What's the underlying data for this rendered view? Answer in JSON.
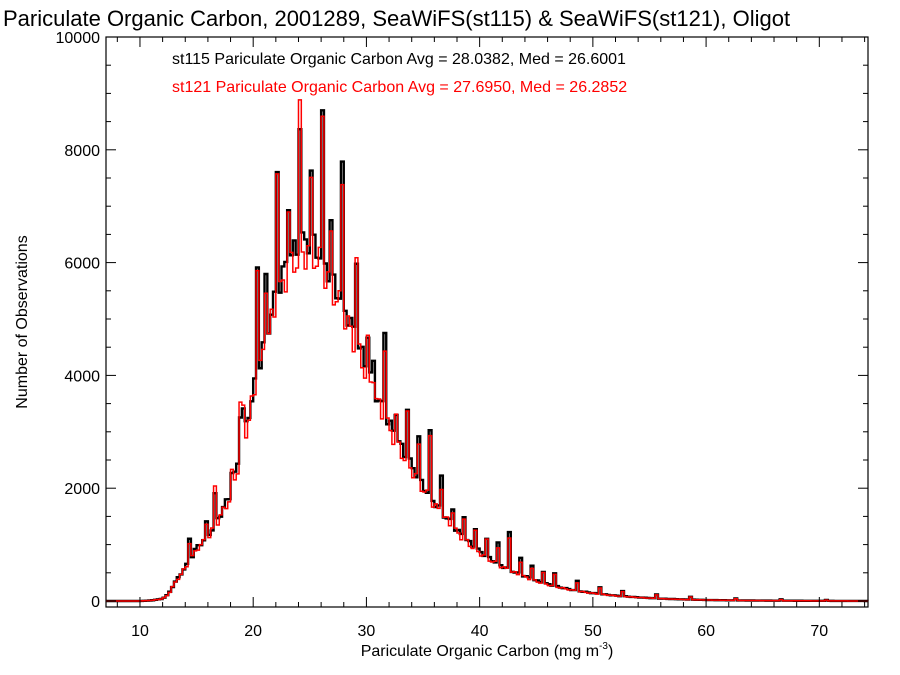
{
  "colors": {
    "st115": "#000000",
    "st121": "#ff0000",
    "axis": "#000000",
    "background": "#ffffff"
  },
  "chart_data": {
    "type": "histogram",
    "title": "Pariculate Organic Carbon, 2001289, SeaWiFS(st115) & SeaWiFS(st121), Oligot",
    "xlabel": "Pariculate Organic Carbon (mg m",
    "xlabel_sup": "-3",
    "xlabel_end": ")",
    "ylabel": "Number of Observations",
    "xlim": [
      7,
      74.3
    ],
    "ylim": [
      0,
      10000
    ],
    "xticks": [
      10,
      20,
      30,
      40,
      50,
      60,
      70
    ],
    "xtick_labels": [
      "10",
      "20",
      "30",
      "40",
      "50",
      "60",
      "70"
    ],
    "yticks": [
      0,
      2000,
      4000,
      6000,
      8000,
      10000
    ],
    "ytick_labels": [
      "0",
      "2000",
      "4000",
      "6000",
      "8000",
      "10000"
    ],
    "x_minor_step": 2,
    "y_minor_step": 500,
    "grid": false,
    "legend": [
      {
        "text": "st115 Pariculate Organic Carbon Avg = 28.0382, Med = 26.6001",
        "color": "#000000"
      },
      {
        "text": "st121 Pariculate Organic Carbon Avg = 27.6950, Med = 26.2852",
        "color": "#ff0000"
      }
    ],
    "legend_position": "top-left",
    "base_points": [
      [
        7,
        0
      ],
      [
        10,
        0
      ],
      [
        11,
        10
      ],
      [
        12,
        40
      ],
      [
        12.5,
        120
      ],
      [
        13,
        300
      ],
      [
        13.5,
        450
      ],
      [
        14,
        600
      ],
      [
        14.5,
        750
      ],
      [
        15,
        950
      ],
      [
        16,
        1150
      ],
      [
        17,
        1500
      ],
      [
        18,
        1900
      ],
      [
        19,
        2750
      ],
      [
        20,
        3700
      ],
      [
        21,
        4600
      ],
      [
        22,
        5400
      ],
      [
        23,
        6000
      ],
      [
        24,
        6300
      ],
      [
        25,
        6400
      ],
      [
        26,
        6150
      ],
      [
        27,
        5700
      ],
      [
        28,
        5250
      ],
      [
        29,
        4700
      ],
      [
        30,
        4150
      ],
      [
        31,
        3600
      ],
      [
        32,
        3150
      ],
      [
        33,
        2750
      ],
      [
        34,
        2400
      ],
      [
        35,
        2050
      ],
      [
        36,
        1750
      ],
      [
        37,
        1500
      ],
      [
        38,
        1250
      ],
      [
        39,
        1050
      ],
      [
        40,
        880
      ],
      [
        41,
        740
      ],
      [
        42,
        620
      ],
      [
        43,
        520
      ],
      [
        44,
        440
      ],
      [
        45,
        360
      ],
      [
        46,
        300
      ],
      [
        47,
        250
      ],
      [
        48,
        205
      ],
      [
        49,
        170
      ],
      [
        50,
        140
      ],
      [
        52,
        95
      ],
      [
        54,
        65
      ],
      [
        56,
        42
      ],
      [
        58,
        28
      ],
      [
        60,
        18
      ],
      [
        63,
        10
      ],
      [
        66,
        6
      ],
      [
        70,
        3
      ],
      [
        74.3,
        0
      ]
    ],
    "series": [
      {
        "name": "st115",
        "bin_start": 7,
        "bin_width": 0.25,
        "scale": 1.0,
        "spikes": [
          [
            14.25,
            400
          ],
          [
            15.75,
            250
          ],
          [
            16.5,
            500
          ],
          [
            18.0,
            300
          ],
          [
            18.75,
            700
          ],
          [
            19.0,
            500
          ],
          [
            20.25,
            1900
          ],
          [
            21.0,
            1000
          ],
          [
            22.0,
            2200
          ],
          [
            23.0,
            1100
          ],
          [
            24.0,
            2200
          ],
          [
            25.0,
            1200
          ],
          [
            26.0,
            2400
          ],
          [
            26.75,
            900
          ],
          [
            27.75,
            2300
          ],
          [
            29.0,
            1500
          ],
          [
            30.0,
            700
          ],
          [
            30.5,
            400
          ],
          [
            31.5,
            1500
          ],
          [
            32.5,
            500
          ],
          [
            33.5,
            900
          ],
          [
            34.5,
            700
          ],
          [
            35.5,
            1100
          ],
          [
            36.5,
            600
          ],
          [
            37.5,
            300
          ],
          [
            38.5,
            400
          ],
          [
            39.5,
            350
          ],
          [
            40.5,
            300
          ],
          [
            41.5,
            350
          ],
          [
            42.5,
            650
          ],
          [
            43.5,
            300
          ],
          [
            44.5,
            250
          ],
          [
            45.5,
            200
          ],
          [
            46.5,
            220
          ],
          [
            48.5,
            170
          ],
          [
            50.5,
            120
          ],
          [
            52.5,
            90
          ],
          [
            55.5,
            70
          ],
          [
            58.5,
            50
          ],
          [
            62.5,
            35
          ],
          [
            66.5,
            25
          ],
          [
            70.5,
            15
          ]
        ]
      },
      {
        "name": "st121",
        "bin_start": 7,
        "bin_width": 0.25,
        "scale": 0.97,
        "spikes": [
          [
            14.25,
            350
          ],
          [
            15.75,
            300
          ],
          [
            16.5,
            700
          ],
          [
            18.0,
            300
          ],
          [
            18.75,
            900
          ],
          [
            19.0,
            600
          ],
          [
            20.25,
            2100
          ],
          [
            21.0,
            1100
          ],
          [
            22.0,
            2450
          ],
          [
            23.0,
            1000
          ],
          [
            24.0,
            2500
          ],
          [
            25.0,
            1100
          ],
          [
            26.0,
            2700
          ],
          [
            26.75,
            800
          ],
          [
            27.75,
            2300
          ],
          [
            29.0,
            1600
          ],
          [
            30.0,
            600
          ],
          [
            30.5,
            350
          ],
          [
            31.5,
            1300
          ],
          [
            32.5,
            450
          ],
          [
            33.5,
            800
          ],
          [
            34.5,
            600
          ],
          [
            35.5,
            1150
          ],
          [
            36.5,
            500
          ],
          [
            37.5,
            300
          ],
          [
            38.5,
            350
          ],
          [
            39.5,
            300
          ],
          [
            40.5,
            300
          ],
          [
            41.5,
            300
          ],
          [
            42.5,
            600
          ],
          [
            43.5,
            250
          ],
          [
            44.5,
            200
          ],
          [
            45.5,
            180
          ],
          [
            46.5,
            200
          ],
          [
            48.5,
            150
          ],
          [
            50.5,
            110
          ],
          [
            52.5,
            80
          ],
          [
            55.5,
            65
          ],
          [
            58.5,
            45
          ],
          [
            62.5,
            30
          ],
          [
            66.5,
            20
          ],
          [
            70.5,
            12
          ]
        ]
      }
    ]
  }
}
